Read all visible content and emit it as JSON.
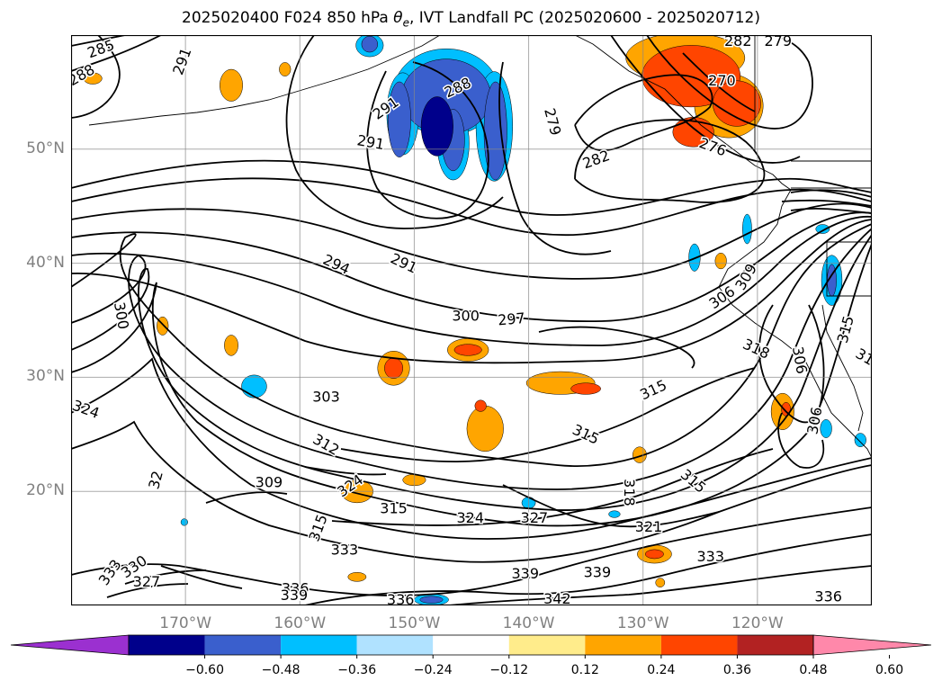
{
  "chart_data": {
    "type": "contour map",
    "title": "2025020400 F024 850 hPa $\\theta_e$, IVT Landfall PC (2025020600 - 2025020712)",
    "title_parts": [
      "2025020400 F024 850 hPa ",
      "θ",
      "e",
      ", IVT Landfall PC (2025020600 - 2025020712)"
    ],
    "projection": "PlateCarree",
    "lon_range": [
      -180,
      -110
    ],
    "lat_range": [
      10,
      60
    ],
    "grid": true,
    "lat_ticks": [
      {
        "value": 20,
        "label": "20°N"
      },
      {
        "value": 30,
        "label": "30°N"
      },
      {
        "value": 40,
        "label": "40°N"
      },
      {
        "value": 50,
        "label": "50°N"
      }
    ],
    "lon_ticks": [
      {
        "value": -170,
        "label": "170°W"
      },
      {
        "value": -160,
        "label": "160°W"
      },
      {
        "value": -150,
        "label": "150°W"
      },
      {
        "value": -140,
        "label": "140°W"
      },
      {
        "value": -130,
        "label": "130°W"
      },
      {
        "value": -120,
        "label": "120°W"
      }
    ],
    "contour_field": "850 hPa theta-e (K)",
    "contour_labels": [
      {
        "text": "285",
        "lon": -177.4,
        "lat": 58.8,
        "rot": -20
      },
      {
        "text": "288",
        "lon": -179.1,
        "lat": 56.5,
        "rot": -30
      },
      {
        "text": "291",
        "lon": -170.3,
        "lat": 57.7,
        "rot": -70
      },
      {
        "text": "291",
        "lon": -152.5,
        "lat": 53.6,
        "rot": -35
      },
      {
        "text": "288",
        "lon": -146.2,
        "lat": 55.4,
        "rot": -25
      },
      {
        "text": "291",
        "lon": -153.8,
        "lat": 50.6,
        "rot": 10
      },
      {
        "text": "279",
        "lon": -137.9,
        "lat": 52.4,
        "rot": 75
      },
      {
        "text": "282",
        "lon": -134.1,
        "lat": 49.1,
        "rot": -20
      },
      {
        "text": "282",
        "lon": -121.7,
        "lat": 59.5,
        "rot": 0
      },
      {
        "text": "279",
        "lon": -118.2,
        "lat": 59.5,
        "rot": 0
      },
      {
        "text": "270",
        "lon": -123.1,
        "lat": 56.0,
        "rot": 0
      },
      {
        "text": "276",
        "lon": -123.9,
        "lat": 50.2,
        "rot": 20
      },
      {
        "text": "294",
        "lon": -156.8,
        "lat": 39.9,
        "rot": 25
      },
      {
        "text": "291",
        "lon": -150.9,
        "lat": 40.0,
        "rot": 25
      },
      {
        "text": "300",
        "lon": -175.6,
        "lat": 35.4,
        "rot": 80
      },
      {
        "text": "300",
        "lon": -145.5,
        "lat": 35.4,
        "rot": 0
      },
      {
        "text": "297",
        "lon": -141.5,
        "lat": 35.1,
        "rot": -5
      },
      {
        "text": "306",
        "lon": -123.1,
        "lat": 37.0,
        "rot": -35
      },
      {
        "text": "309",
        "lon": -121.0,
        "lat": 38.8,
        "rot": -60
      },
      {
        "text": "318",
        "lon": -120.1,
        "lat": 32.5,
        "rot": 25
      },
      {
        "text": "306",
        "lon": -116.3,
        "lat": 31.5,
        "rot": 80
      },
      {
        "text": "315",
        "lon": -112.3,
        "lat": 34.2,
        "rot": -75
      },
      {
        "text": "31",
        "lon": -110.6,
        "lat": 31.8,
        "rot": 30
      },
      {
        "text": "303",
        "lon": -157.7,
        "lat": 28.3,
        "rot": 0
      },
      {
        "text": "324",
        "lon": -178.7,
        "lat": 27.2,
        "rot": 20
      },
      {
        "text": "312",
        "lon": -157.7,
        "lat": 24.1,
        "rot": 30
      },
      {
        "text": "315",
        "lon": -129.1,
        "lat": 28.9,
        "rot": -25
      },
      {
        "text": "315",
        "lon": -135.0,
        "lat": 25.0,
        "rot": 25
      },
      {
        "text": "315",
        "lon": -125.6,
        "lat": 20.9,
        "rot": 40
      },
      {
        "text": "306",
        "lon": -115.0,
        "lat": 26.2,
        "rot": -80
      },
      {
        "text": "309",
        "lon": -162.7,
        "lat": 20.8,
        "rot": 0
      },
      {
        "text": "32",
        "lon": -172.6,
        "lat": 21.0,
        "rot": -75
      },
      {
        "text": "324",
        "lon": -155.6,
        "lat": 20.5,
        "rot": -35
      },
      {
        "text": "315",
        "lon": -151.8,
        "lat": 18.5,
        "rot": 0
      },
      {
        "text": "318",
        "lon": -131.2,
        "lat": 19.9,
        "rot": 90
      },
      {
        "text": "324",
        "lon": -145.1,
        "lat": 17.7,
        "rot": 0
      },
      {
        "text": "327",
        "lon": -139.5,
        "lat": 17.7,
        "rot": 0
      },
      {
        "text": "315",
        "lon": -158.4,
        "lat": 16.8,
        "rot": -70
      },
      {
        "text": "321",
        "lon": -129.5,
        "lat": 16.9,
        "rot": 0
      },
      {
        "text": "333",
        "lon": -156.1,
        "lat": 14.9,
        "rot": 0
      },
      {
        "text": "333",
        "lon": -124.1,
        "lat": 14.3,
        "rot": 0
      },
      {
        "text": "333",
        "lon": -176.6,
        "lat": 12.9,
        "rot": -55
      },
      {
        "text": "330",
        "lon": -174.5,
        "lat": 13.4,
        "rot": -35
      },
      {
        "text": "327",
        "lon": -173.4,
        "lat": 12.1,
        "rot": 0
      },
      {
        "text": "339",
        "lon": -140.3,
        "lat": 12.8,
        "rot": 0
      },
      {
        "text": "339",
        "lon": -134.0,
        "lat": 12.9,
        "rot": 0
      },
      {
        "text": "336",
        "lon": -160.4,
        "lat": 11.5,
        "rot": 0
      },
      {
        "text": "339",
        "lon": -160.5,
        "lat": 10.9,
        "rot": 0
      },
      {
        "text": "336",
        "lon": -151.2,
        "lat": 10.5,
        "rot": 0
      },
      {
        "text": "342",
        "lon": -137.5,
        "lat": 10.6,
        "rot": 0
      },
      {
        "text": "336",
        "lon": -113.8,
        "lat": 10.8,
        "rot": 0
      }
    ],
    "fill_field": "IVT Landfall PC",
    "fill_patches": [
      {
        "lon": -147.2,
        "lat": 55.0,
        "level": -0.24,
        "rx": 4.6,
        "ry": 3.8
      },
      {
        "lon": -151.0,
        "lat": 53.1,
        "level": -0.24,
        "rx": 1.4,
        "ry": 3.6
      },
      {
        "lon": -143.0,
        "lat": 52.0,
        "level": -0.24,
        "rx": 1.6,
        "ry": 4.8
      },
      {
        "lon": -146.6,
        "lat": 50.5,
        "level": -0.24,
        "rx": 1.4,
        "ry": 3.2
      },
      {
        "lon": -147.2,
        "lat": 54.6,
        "level": -0.36,
        "rx": 3.9,
        "ry": 3.3
      },
      {
        "lon": -151.3,
        "lat": 52.6,
        "level": -0.36,
        "rx": 1.0,
        "ry": 3.3
      },
      {
        "lon": -142.9,
        "lat": 51.6,
        "level": -0.36,
        "rx": 1.0,
        "ry": 4.3
      },
      {
        "lon": -146.6,
        "lat": 50.8,
        "level": -0.36,
        "rx": 1.0,
        "ry": 2.7
      },
      {
        "lon": -148.0,
        "lat": 52.0,
        "level": -0.48,
        "rx": 1.4,
        "ry": 2.6
      },
      {
        "lon": -153.9,
        "lat": 59.1,
        "level": -0.24,
        "rx": 1.2,
        "ry": 1.0
      },
      {
        "lon": -153.9,
        "lat": 59.2,
        "level": -0.36,
        "rx": 0.7,
        "ry": 0.7
      },
      {
        "lon": -166.0,
        "lat": 55.6,
        "level": 0.24,
        "rx": 1.0,
        "ry": 1.4
      },
      {
        "lon": -178.1,
        "lat": 56.2,
        "level": 0.24,
        "rx": 0.8,
        "ry": 0.5
      },
      {
        "lon": -161.3,
        "lat": 57.0,
        "level": 0.24,
        "rx": 0.5,
        "ry": 0.6
      },
      {
        "lon": -126.3,
        "lat": 58.0,
        "level": 0.24,
        "rx": 5.2,
        "ry": 2.2
      },
      {
        "lon": -122.5,
        "lat": 53.8,
        "level": 0.24,
        "rx": 3.0,
        "ry": 2.8
      },
      {
        "lon": -125.8,
        "lat": 56.4,
        "level": 0.36,
        "rx": 4.3,
        "ry": 2.7
      },
      {
        "lon": -121.8,
        "lat": 54.0,
        "level": 0.36,
        "rx": 2.1,
        "ry": 2.0
      },
      {
        "lon": -125.6,
        "lat": 51.5,
        "level": 0.36,
        "rx": 1.8,
        "ry": 1.3
      },
      {
        "lon": -151.8,
        "lat": 30.8,
        "level": 0.24,
        "rx": 1.4,
        "ry": 1.5
      },
      {
        "lon": -151.8,
        "lat": 30.8,
        "level": 0.36,
        "rx": 0.8,
        "ry": 0.9
      },
      {
        "lon": -145.3,
        "lat": 32.4,
        "level": 0.24,
        "rx": 1.8,
        "ry": 1.0
      },
      {
        "lon": -145.3,
        "lat": 32.4,
        "level": 0.36,
        "rx": 1.2,
        "ry": 0.5
      },
      {
        "lon": -137.2,
        "lat": 29.5,
        "level": 0.24,
        "rx": 3.0,
        "ry": 1.0
      },
      {
        "lon": -135.0,
        "lat": 29.0,
        "level": 0.36,
        "rx": 1.3,
        "ry": 0.5
      },
      {
        "lon": -143.8,
        "lat": 25.5,
        "level": 0.24,
        "rx": 1.6,
        "ry": 2.0
      },
      {
        "lon": -144.2,
        "lat": 27.5,
        "level": 0.36,
        "rx": 0.5,
        "ry": 0.5
      },
      {
        "lon": -166.0,
        "lat": 32.8,
        "level": 0.24,
        "rx": 0.6,
        "ry": 0.9
      },
      {
        "lon": -172.0,
        "lat": 34.5,
        "level": 0.24,
        "rx": 0.5,
        "ry": 0.8
      },
      {
        "lon": -155.0,
        "lat": 20.0,
        "level": 0.24,
        "rx": 1.4,
        "ry": 1.0
      },
      {
        "lon": -150.0,
        "lat": 21.0,
        "level": 0.24,
        "rx": 1.0,
        "ry": 0.5
      },
      {
        "lon": -117.8,
        "lat": 27.0,
        "level": 0.24,
        "rx": 1.0,
        "ry": 1.6
      },
      {
        "lon": -117.5,
        "lat": 27.2,
        "level": 0.36,
        "rx": 0.4,
        "ry": 0.6
      },
      {
        "lon": -129.0,
        "lat": 14.5,
        "level": 0.24,
        "rx": 1.5,
        "ry": 0.8
      },
      {
        "lon": -129.0,
        "lat": 14.5,
        "level": 0.36,
        "rx": 0.8,
        "ry": 0.4
      },
      {
        "lon": -130.3,
        "lat": 23.2,
        "level": 0.24,
        "rx": 0.6,
        "ry": 0.7
      },
      {
        "lon": -123.2,
        "lat": 40.2,
        "level": 0.24,
        "rx": 0.5,
        "ry": 0.7
      },
      {
        "lon": -155.0,
        "lat": 12.5,
        "level": 0.24,
        "rx": 0.8,
        "ry": 0.4
      },
      {
        "lon": -128.5,
        "lat": 12.0,
        "level": 0.24,
        "rx": 0.4,
        "ry": 0.4
      },
      {
        "lon": -113.5,
        "lat": 38.5,
        "level": -0.24,
        "rx": 0.9,
        "ry": 2.2
      },
      {
        "lon": -113.5,
        "lat": 38.5,
        "level": -0.36,
        "rx": 0.4,
        "ry": 1.4
      },
      {
        "lon": -125.5,
        "lat": 40.5,
        "level": -0.24,
        "rx": 0.5,
        "ry": 1.2
      },
      {
        "lon": -120.9,
        "lat": 43.0,
        "level": -0.24,
        "rx": 0.4,
        "ry": 1.3
      },
      {
        "lon": -114.3,
        "lat": 43.0,
        "level": -0.24,
        "rx": 0.6,
        "ry": 0.4
      },
      {
        "lon": -114.0,
        "lat": 25.5,
        "level": -0.24,
        "rx": 0.5,
        "ry": 0.8
      },
      {
        "lon": -111.0,
        "lat": 24.5,
        "level": -0.24,
        "rx": 0.5,
        "ry": 0.6
      },
      {
        "lon": -164.0,
        "lat": 29.2,
        "level": -0.24,
        "rx": 1.1,
        "ry": 1.0
      },
      {
        "lon": -170.1,
        "lat": 17.3,
        "level": -0.24,
        "rx": 0.3,
        "ry": 0.3
      },
      {
        "lon": -148.5,
        "lat": 10.5,
        "level": -0.24,
        "rx": 1.5,
        "ry": 0.5
      },
      {
        "lon": -148.5,
        "lat": 10.5,
        "level": -0.36,
        "rx": 1.0,
        "ry": 0.3
      },
      {
        "lon": -140.0,
        "lat": 19.0,
        "level": -0.24,
        "rx": 0.6,
        "ry": 0.5
      },
      {
        "lon": -132.5,
        "lat": 18.0,
        "level": -0.24,
        "rx": 0.5,
        "ry": 0.3
      }
    ],
    "colorbar": {
      "levels": [
        -0.72,
        -0.6,
        -0.48,
        -0.36,
        -0.24,
        -0.12,
        0.12,
        0.24,
        0.36,
        0.48,
        0.6,
        0.72
      ],
      "colors": [
        "#9b30d0",
        "#00008b",
        "#3a5fcd",
        "#00bfff",
        "#b0e2ff",
        "#ffffff",
        "#ffec8b",
        "#ffa500",
        "#ff4500",
        "#b22222",
        "#ff88aa"
      ],
      "extend": "both",
      "under_color": "#9b30d0",
      "over_color": "#ff88aa",
      "tick_labels": [
        "−0.60",
        "−0.48",
        "−0.36",
        "−0.24",
        "−0.12",
        "0.12",
        "0.24",
        "0.36",
        "0.48",
        "0.60"
      ]
    }
  }
}
